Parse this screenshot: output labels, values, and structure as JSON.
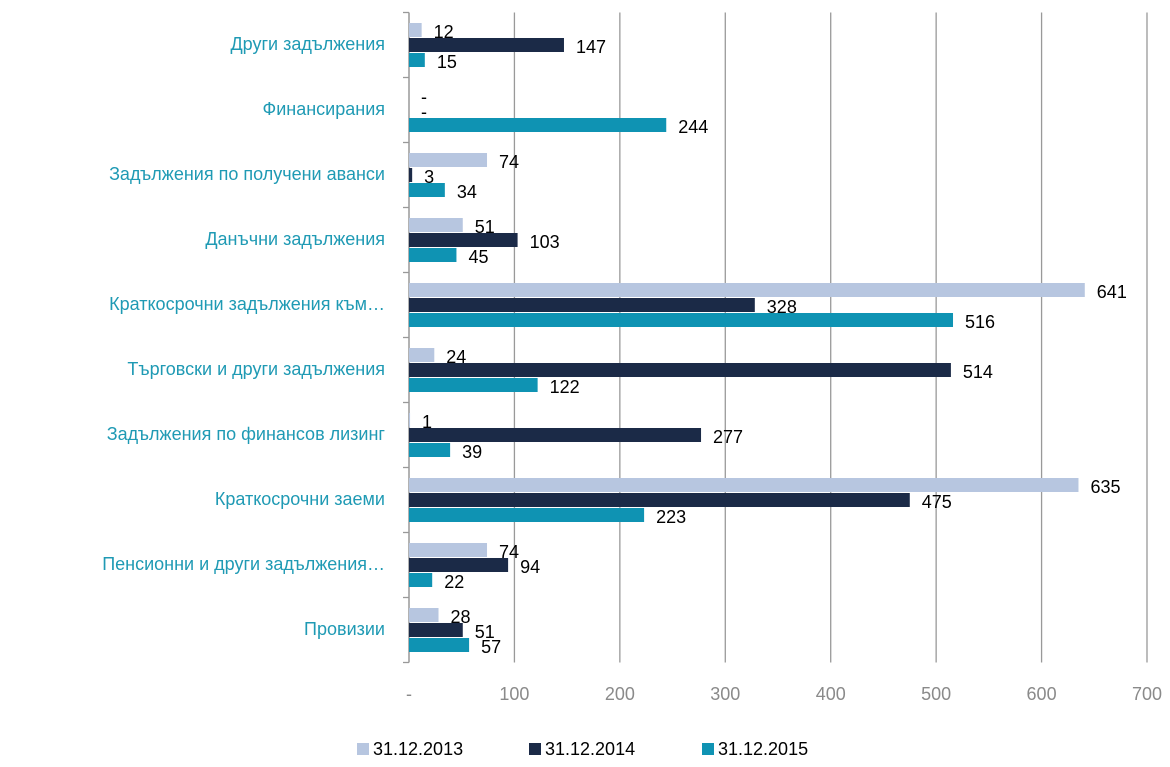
{
  "chart_data": {
    "type": "hbar",
    "categories": [
      "Други задължения",
      "Финансирания",
      "Задължения по получени аванси",
      "Данъчни задължения",
      "Краткосрочни задължения към…",
      "Търговски и други задължения",
      "Задължения по финансов лизинг",
      "Краткосрочни заеми",
      "Пенсионни и други задължения…",
      "Провизии"
    ],
    "series": [
      {
        "name": "31.12.2013",
        "color": "#b7c6e0",
        "values": [
          12,
          0,
          74,
          51,
          641,
          24,
          1,
          635,
          74,
          28
        ],
        "value_labels": [
          "12",
          "-",
          "74",
          "51",
          "641",
          "24",
          "1",
          "635",
          "74",
          "28"
        ]
      },
      {
        "name": "31.12.2014",
        "color": "#1b2a47",
        "values": [
          147,
          0,
          3,
          103,
          328,
          514,
          277,
          475,
          94,
          51
        ],
        "value_labels": [
          "147",
          "-",
          "3",
          "103",
          "328",
          "514",
          "277",
          "475",
          "94",
          "51"
        ]
      },
      {
        "name": "31.12.2015",
        "color": "#0f93b3",
        "values": [
          15,
          244,
          34,
          45,
          516,
          122,
          39,
          223,
          22,
          57
        ]
      }
    ],
    "xlim": [
      0,
      700
    ],
    "xticks": [
      {
        "value": 0,
        "label": "-"
      },
      100,
      200,
      300,
      400,
      500,
      600,
      700
    ],
    "grid": true,
    "legend": "bottom"
  }
}
